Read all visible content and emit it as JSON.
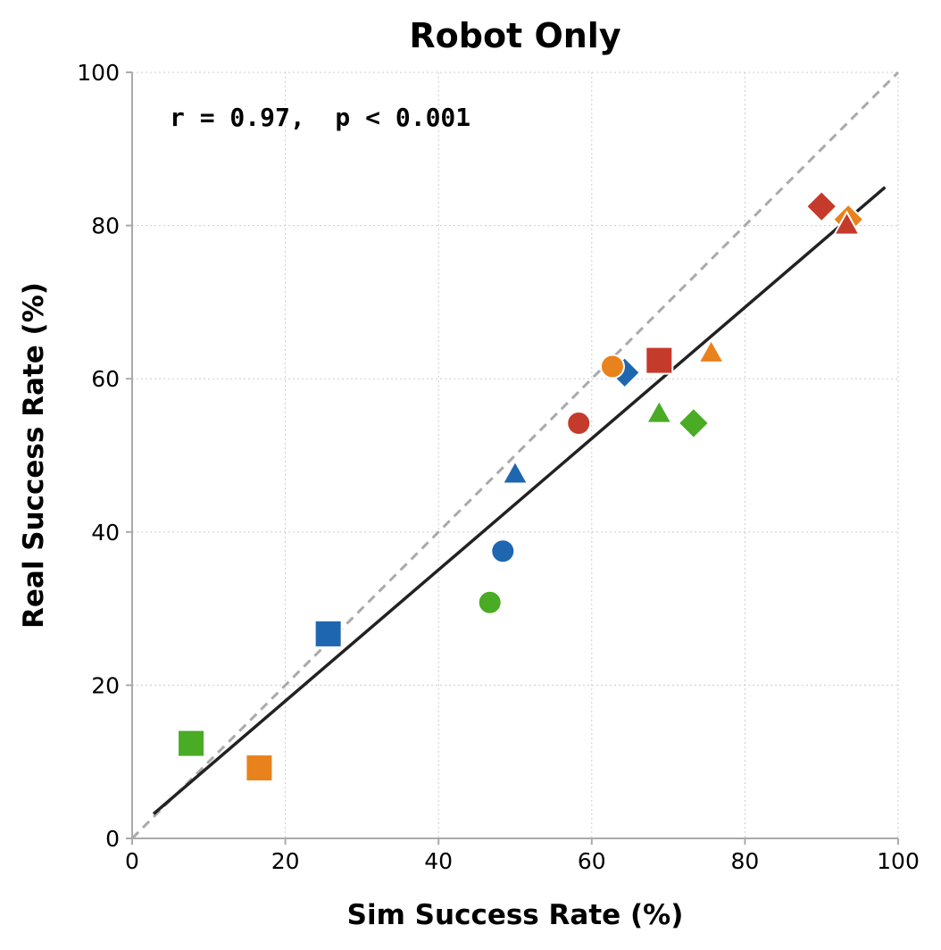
{
  "chart_data": {
    "type": "scatter",
    "title": "Robot Only",
    "xlabel": "Sim Success Rate (%)",
    "ylabel": "Real Success Rate (%)",
    "xlim": [
      0,
      100
    ],
    "ylim": [
      0,
      100
    ],
    "xticks": [
      "0",
      "20",
      "40",
      "60",
      "80",
      "100"
    ],
    "yticks": [
      "0",
      "20",
      "40",
      "60",
      "80",
      "100"
    ],
    "grid": true,
    "annotation": "r = 0.97,  p < 0.001",
    "identity_line": true,
    "fit_line": {
      "x": [
        2.8,
        98.3
      ],
      "y": [
        3.2,
        85.0
      ]
    },
    "colors": {
      "blue": "#1f66b0",
      "orange": "#e8821c",
      "green": "#4aab25",
      "red": "#c43a2b"
    },
    "points": [
      {
        "x": 48.4,
        "y": 37.5,
        "color": "blue",
        "marker": "circle"
      },
      {
        "x": 50.0,
        "y": 47.5,
        "color": "blue",
        "marker": "triangle"
      },
      {
        "x": 25.6,
        "y": 26.7,
        "color": "blue",
        "marker": "square"
      },
      {
        "x": 64.3,
        "y": 60.8,
        "color": "blue",
        "marker": "diamond"
      },
      {
        "x": 62.7,
        "y": 61.6,
        "color": "orange",
        "marker": "circle"
      },
      {
        "x": 75.6,
        "y": 63.3,
        "color": "orange",
        "marker": "triangle"
      },
      {
        "x": 16.6,
        "y": 9.2,
        "color": "orange",
        "marker": "square"
      },
      {
        "x": 93.5,
        "y": 80.8,
        "color": "orange",
        "marker": "diamond"
      },
      {
        "x": 46.7,
        "y": 30.8,
        "color": "green",
        "marker": "circle"
      },
      {
        "x": 68.8,
        "y": 55.4,
        "color": "green",
        "marker": "triangle"
      },
      {
        "x": 7.7,
        "y": 12.4,
        "color": "green",
        "marker": "square"
      },
      {
        "x": 73.3,
        "y": 54.2,
        "color": "green",
        "marker": "diamond"
      },
      {
        "x": 58.3,
        "y": 54.2,
        "color": "red",
        "marker": "circle"
      },
      {
        "x": 93.3,
        "y": 80.0,
        "color": "red",
        "marker": "triangle"
      },
      {
        "x": 68.8,
        "y": 62.4,
        "color": "red",
        "marker": "square"
      },
      {
        "x": 90.0,
        "y": 82.5,
        "color": "red",
        "marker": "diamond"
      }
    ]
  }
}
